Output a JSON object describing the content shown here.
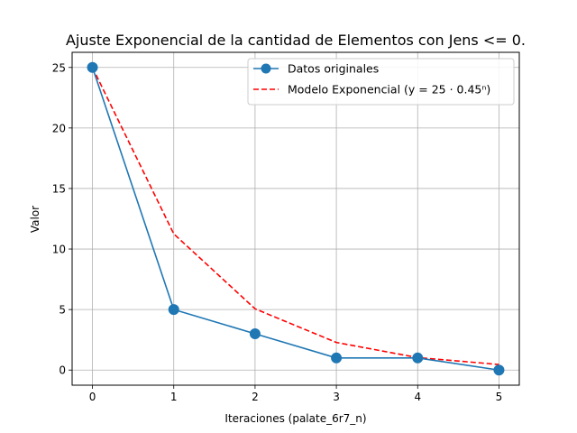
{
  "chart_data": {
    "type": "line",
    "title": "Ajuste Exponencial de la cantidad de Elementos con Jens <= 0.",
    "xlabel": "Iteraciones (palate_6r7_n)",
    "ylabel": "Valor",
    "x": [
      0,
      1,
      2,
      3,
      4,
      5
    ],
    "xlim": [
      -0.25,
      5.25
    ],
    "ylim": [
      -1.25,
      26.25
    ],
    "xticks": [
      0,
      1,
      2,
      3,
      4,
      5
    ],
    "yticks": [
      0,
      5,
      10,
      15,
      20,
      25
    ],
    "grid": true,
    "legend_position": "top-right",
    "series": [
      {
        "name": "Datos originales",
        "values": [
          25,
          5,
          3,
          1,
          1,
          0
        ],
        "color": "#1f77b4",
        "style": "solid",
        "marker": "circle"
      },
      {
        "name": "Modelo Exponencial (y = 25 · 0.45ⁿ)",
        "values": [
          25,
          11.25,
          5.06,
          2.28,
          1.03,
          0.46
        ],
        "color": "#ff0000",
        "style": "dashed",
        "marker": "none"
      }
    ]
  }
}
